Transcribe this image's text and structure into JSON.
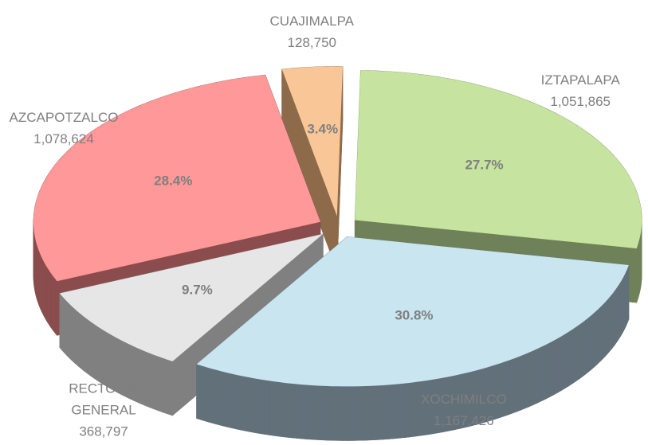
{
  "chart_data": {
    "type": "pie3d",
    "categories": [
      "IZTAPALAPA",
      "XOCHIMILCO",
      "RECTORÍA GENERAL",
      "AZCAPOTZALCO",
      "CUAJIMALPA"
    ],
    "values": [
      1051865,
      1167426,
      368797,
      1078624,
      128750
    ],
    "value_labels": [
      "1,051,865",
      "1,167,426",
      "368,797",
      "1,078,624",
      "128,750"
    ],
    "percent_labels": [
      "27.7%",
      "30.8%",
      "9.7%",
      "28.4%",
      "3.4%"
    ],
    "colors": [
      "#c6e4a0",
      "#c9e5ef",
      "#e6e6e6",
      "#ff9999",
      "#f9c697"
    ],
    "side_colors": [
      "#6f8158",
      "#62707a",
      "#808080",
      "#8a4c4c",
      "#8c6a4a"
    ]
  }
}
